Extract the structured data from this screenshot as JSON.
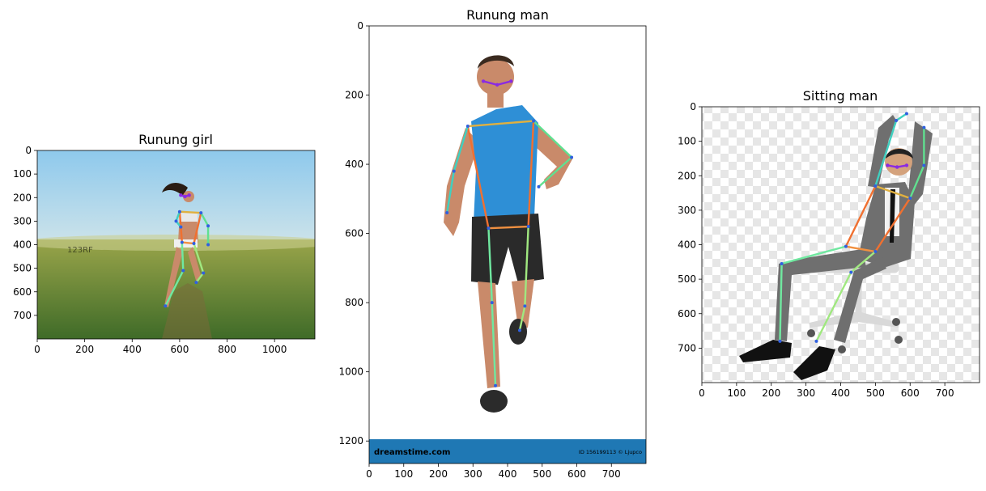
{
  "chart_data": [
    {
      "type": "image",
      "title": "Runung girl",
      "xlabel": "",
      "ylabel": "",
      "xlim": [
        0,
        1170
      ],
      "ylim": [
        800,
        0
      ],
      "xticks": [
        0,
        200,
        400,
        600,
        800,
        1000
      ],
      "yticks": [
        0,
        100,
        200,
        300,
        400,
        500,
        600,
        700
      ],
      "image": {
        "watermark": "123RF",
        "colors": {
          "sky_top": "#8ec9ec",
          "sky_bottom": "#cfe4ea",
          "field_top": "#9aa54a",
          "field_bottom": "#3f6b28"
        },
        "keypoints": {
          "eyes": [
            [
              605,
              190
            ],
            [
              640,
              190
            ]
          ],
          "shoulders": [
            [
              600,
              260
            ],
            [
              690,
              265
            ]
          ],
          "elbows": [
            [
              585,
              300
            ],
            [
              720,
              320
            ]
          ],
          "wrists": [
            [
              605,
              325
            ],
            [
              720,
              400
            ]
          ],
          "hips": [
            [
              610,
              390
            ],
            [
              660,
              395
            ]
          ],
          "knees": [
            [
              615,
              510
            ],
            [
              700,
              520
            ]
          ],
          "ankles": [
            [
              540,
              660
            ],
            [
              670,
              560
            ]
          ]
        }
      }
    },
    {
      "type": "image",
      "title": "Runung man",
      "xlabel": "",
      "ylabel": "",
      "xlim": [
        0,
        800
      ],
      "ylim": [
        1265,
        0
      ],
      "xticks": [
        0,
        100,
        200,
        300,
        400,
        500,
        600,
        700
      ],
      "yticks": [
        0,
        200,
        400,
        600,
        800,
        1000,
        1200
      ],
      "image": {
        "banner_left": "dreamstime.com",
        "banner_right": "ID 156199113 © Ljupco",
        "colors": {
          "background": "#ffffff",
          "banner": "#1f78b4",
          "shirt": "#2e8fd6",
          "shorts": "#2a2a2a",
          "skin": "#c98a6a"
        },
        "keypoints": {
          "eyes": [
            [
              330,
              160
            ],
            [
              410,
              160
            ]
          ],
          "shoulders": [
            [
              285,
              290
            ],
            [
              475,
              275
            ]
          ],
          "elbows": [
            [
              245,
              420
            ],
            [
              585,
              380
            ]
          ],
          "wrists": [
            [
              225,
              540
            ],
            [
              490,
              465
            ]
          ],
          "hips": [
            [
              345,
              585
            ],
            [
              460,
              580
            ]
          ],
          "knees": [
            [
              355,
              800
            ],
            [
              450,
              810
            ]
          ],
          "ankles": [
            [
              365,
              1040
            ],
            [
              435,
              880
            ]
          ]
        }
      }
    },
    {
      "type": "image",
      "title": "Sitting man",
      "xlabel": "",
      "ylabel": "",
      "xlim": [
        0,
        800
      ],
      "ylim": [
        800,
        0
      ],
      "xticks": [
        0,
        100,
        200,
        300,
        400,
        500,
        600,
        700
      ],
      "yticks": [
        0,
        100,
        200,
        300,
        400,
        500,
        600,
        700
      ],
      "image": {
        "colors": {
          "checker_a": "#ffffff",
          "checker_b": "#e6e6e6",
          "suit": "#6f6f6f",
          "skin": "#d4a27c",
          "shoe": "#1a1a1a",
          "chair": "#d9d9d9"
        },
        "keypoints": {
          "eyes": [
            [
              535,
              170
            ],
            [
              590,
              170
            ]
          ],
          "shoulders": [
            [
              500,
              230
            ],
            [
              600,
              265
            ]
          ],
          "elbows": [
            [
              560,
              40
            ],
            [
              640,
              170
            ]
          ],
          "wrists": [
            [
              590,
              20
            ],
            [
              640,
              60
            ]
          ],
          "hips": [
            [
              415,
              405
            ],
            [
              500,
              420
            ]
          ],
          "knees": [
            [
              230,
              455
            ],
            [
              430,
              480
            ]
          ],
          "ankles": [
            [
              225,
              680
            ],
            [
              330,
              680
            ]
          ]
        }
      }
    }
  ]
}
